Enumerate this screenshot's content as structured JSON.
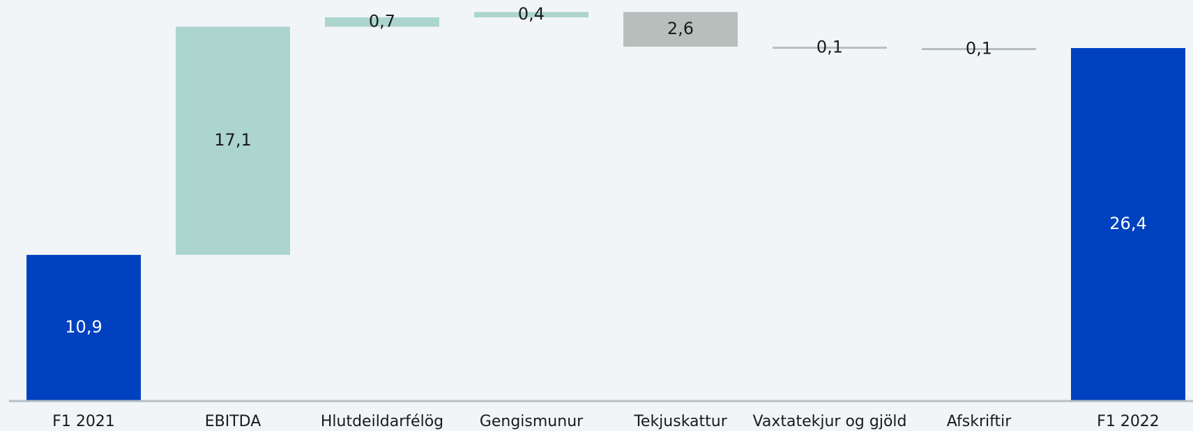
{
  "chart_data": {
    "type": "waterfall",
    "categories": [
      "F1 2021",
      "EBITDA",
      "Hlutdeildarfélög",
      "Gengismunur",
      "Tekjuskattur",
      "Vaxtatekjur og gjöld",
      "Afskriftir",
      "F1 2022"
    ],
    "values": [
      10.9,
      17.1,
      0.7,
      0.4,
      -2.6,
      -0.1,
      -0.1,
      26.4
    ],
    "value_labels": [
      "10,9",
      "17,1",
      "0,7",
      "0,4",
      "2,6",
      "0,1",
      "0,1",
      "26,4"
    ],
    "totals": [
      true,
      false,
      false,
      false,
      false,
      false,
      false,
      true
    ],
    "colors": {
      "total": "#0041c0",
      "increase": "#acd5ce",
      "decrease": "#b7bfbd"
    },
    "ylim": [
      0,
      30
    ]
  }
}
